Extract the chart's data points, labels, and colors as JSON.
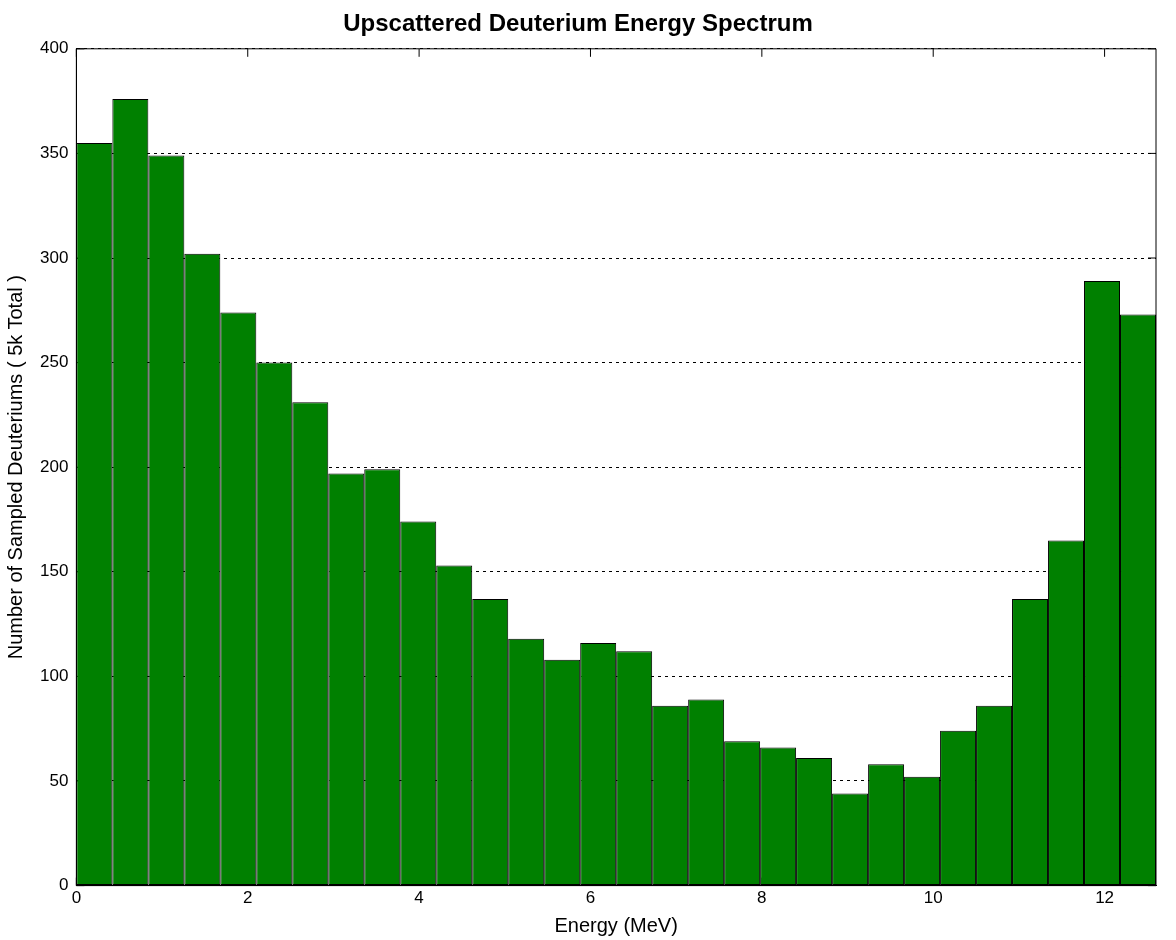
{
  "chart_data": {
    "type": "histogram",
    "title": "Upscattered Deuterium Energy Spectrum",
    "xlabel": "Energy (MeV)",
    "ylabel": "Number of Sampled Deuteriums ( 5k Total )",
    "bins": [
      0,
      0.42,
      0.84,
      1.26,
      1.68,
      2.1,
      2.52,
      2.94,
      3.36,
      3.78,
      4.2,
      4.62,
      5.04,
      5.46,
      5.88,
      6.3,
      6.72,
      7.14,
      7.56,
      7.98,
      8.4,
      8.82,
      9.24,
      9.66,
      10.08,
      10.5,
      10.92,
      11.34,
      11.76,
      12.18,
      12.6
    ],
    "values": [
      355,
      376,
      349,
      302,
      274,
      250,
      231,
      197,
      199,
      174,
      153,
      137,
      118,
      108,
      116,
      112,
      86,
      89,
      69,
      66,
      61,
      44,
      58,
      52,
      74,
      86,
      137,
      165,
      289,
      273
    ],
    "color": "#008000",
    "xlim": [
      0,
      12.6
    ],
    "xticks": [
      0,
      2,
      4,
      6,
      8,
      10,
      12
    ],
    "ylim": [
      0,
      400
    ],
    "yticks": [
      0,
      50,
      100,
      150,
      200,
      250,
      300,
      350,
      400
    ],
    "grid": "y"
  }
}
